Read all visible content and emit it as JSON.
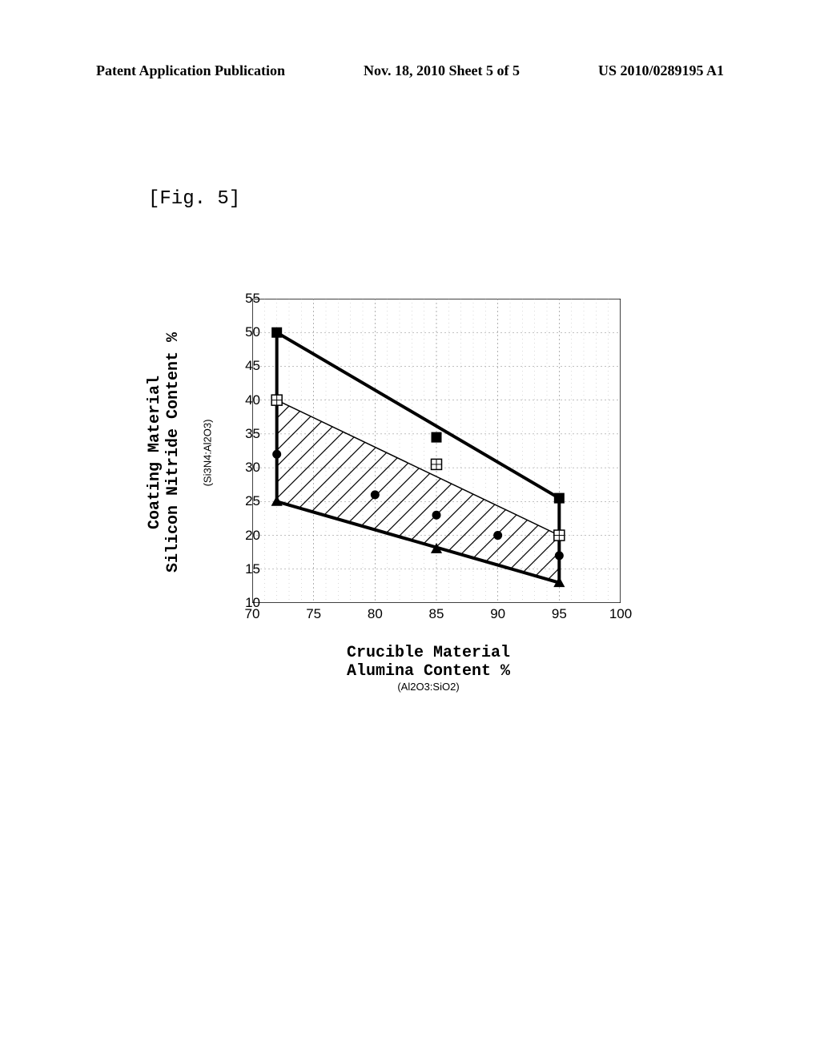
{
  "header": {
    "left": "Patent Application Publication",
    "center": "Nov. 18, 2010  Sheet 5 of 5",
    "right": "US 2010/0289195 A1"
  },
  "figure_label": "[Fig. 5]",
  "chart": {
    "type": "scatter",
    "y_axis": {
      "label_line1": "Coating Material",
      "label_line2": "Silicon Nitride Content %",
      "sublabel": "(Si3N4:Al2O3)",
      "min": 10,
      "max": 55,
      "tick_step": 5,
      "ticks": [
        10,
        15,
        20,
        25,
        30,
        35,
        40,
        45,
        50,
        55
      ]
    },
    "x_axis": {
      "label_line1": "Crucible Material",
      "label_line2": "Alumina Content %",
      "sublabel": "(Al2O3:SiO2)",
      "min": 70,
      "max": 100,
      "tick_step": 5,
      "ticks": [
        70,
        75,
        80,
        85,
        90,
        95,
        100
      ]
    },
    "boundary_polygon": {
      "points": [
        {
          "x": 72,
          "y": 50
        },
        {
          "x": 72,
          "y": 25
        },
        {
          "x": 95,
          "y": 13
        },
        {
          "x": 95,
          "y": 25.5
        }
      ],
      "line_width": 4,
      "color": "#000000"
    },
    "hatched_polygon": {
      "points": [
        {
          "x": 72,
          "y": 40
        },
        {
          "x": 72,
          "y": 25
        },
        {
          "x": 95,
          "y": 13
        },
        {
          "x": 95,
          "y": 20
        }
      ],
      "line_width": 1.5,
      "color": "#000000",
      "hatch_spacing": 16
    },
    "black_squares": {
      "marker": "filled-square",
      "size": 13,
      "color": "#000000",
      "points": [
        {
          "x": 72,
          "y": 50
        },
        {
          "x": 85,
          "y": 34.5
        },
        {
          "x": 95,
          "y": 25.5
        }
      ]
    },
    "open_squares": {
      "marker": "open-square",
      "size": 13,
      "color": "#000000",
      "points": [
        {
          "x": 72,
          "y": 40
        },
        {
          "x": 85,
          "y": 30.5
        },
        {
          "x": 95,
          "y": 20
        }
      ]
    },
    "black_circles": {
      "marker": "filled-circle",
      "size": 11,
      "color": "#000000",
      "points": [
        {
          "x": 72,
          "y": 32
        },
        {
          "x": 80,
          "y": 26
        },
        {
          "x": 85,
          "y": 23
        },
        {
          "x": 90,
          "y": 20
        },
        {
          "x": 95,
          "y": 17
        }
      ]
    },
    "black_triangles": {
      "marker": "filled-triangle",
      "size": 12,
      "color": "#000000",
      "points": [
        {
          "x": 72,
          "y": 25
        },
        {
          "x": 85,
          "y": 18
        },
        {
          "x": 95,
          "y": 13
        }
      ]
    },
    "grid_color": "#808080",
    "background_color": "#ffffff",
    "border_color": "#000000"
  }
}
